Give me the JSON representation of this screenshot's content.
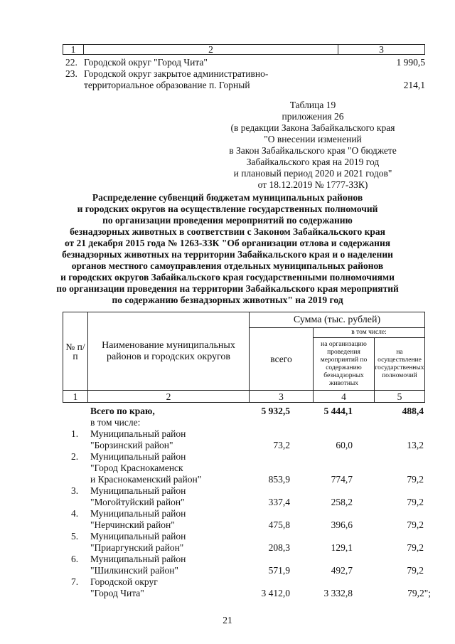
{
  "top_table": {
    "headers": [
      "1",
      "2",
      "3"
    ],
    "rows": [
      {
        "num": "22.",
        "name_lines": [
          "Городской округ \"Город Чита\""
        ],
        "value": "1 990,5"
      },
      {
        "num": "23.",
        "name_lines": [
          "Городской округ закрытое административно-",
          "территориальное образование п. Горный"
        ],
        "value": "214,1"
      }
    ]
  },
  "annex": [
    "Таблица 19",
    "приложения 26",
    "(в редакции Закона Забайкальского края",
    "\"О внесении изменений",
    "в Закон Забайкальского края \"О бюджете",
    "Забайкальского края на 2019 год",
    "и плановый период 2020 и 2021 годов\"",
    "от 18.12.2019  № 1777-ЗЗК)"
  ],
  "title": [
    "Распределение субвенций бюджетам муниципальных районов",
    "и городских округов на осуществление государственных полномочий",
    "по организации проведения мероприятий по содержанию",
    "безнадзорных животных в соответствии с Законом Забайкальского края",
    "от 21 декабря 2015 года № 1263-ЗЗК \"Об организации отлова и содержания",
    "безнадзорных животных на территории Забайкальского края и о наделении",
    "органов местного самоуправления отдельных муниципальных районов",
    "и городских округов Забайкальского края государственными полномочиями",
    "по организации проведения на территории Забайкальского края мероприятий",
    "по содержанию безнадзорных животных\" на 2019 год"
  ],
  "main_table": {
    "header": {
      "num": "№ п/п",
      "name": "Наименование муниципальных районов и городских округов",
      "sum": "Сумма (тыс. рублей)",
      "total": "всего",
      "including": "в том числе:",
      "col4": "на организацию проведения мероприятий по содержанию безнадзорных животных",
      "col5": "на осуществление государственных полномочий"
    },
    "col_numbers": [
      "1",
      "2",
      "3",
      "4",
      "5"
    ],
    "total_row": {
      "name": "Всего по краю,",
      "total": "5 932,5",
      "c4": "5 444,1",
      "c5": "488,4"
    },
    "including_label": "в том числе:",
    "rows": [
      {
        "num": "1.",
        "name_lines": [
          "Муниципальный район",
          "\"Борзинский район\""
        ],
        "total": "73,2",
        "c4": "60,0",
        "c5": "13,2"
      },
      {
        "num": "2.",
        "name_lines": [
          "Муниципальный район",
          "\"Город Краснокаменск",
          "и Краснокаменский район\""
        ],
        "total": "853,9",
        "c4": "774,7",
        "c5": "79,2"
      },
      {
        "num": "3.",
        "name_lines": [
          "Муниципальный район",
          "\"Могойтуйский район\""
        ],
        "total": "337,4",
        "c4": "258,2",
        "c5": "79,2"
      },
      {
        "num": "4.",
        "name_lines": [
          "Муниципальный район",
          "\"Нерчинский район\""
        ],
        "total": "475,8",
        "c4": "396,6",
        "c5": "79,2"
      },
      {
        "num": "5.",
        "name_lines": [
          "Муниципальный район",
          "\"Приаргунский район\""
        ],
        "total": "208,3",
        "c4": "129,1",
        "c5": "79,2"
      },
      {
        "num": "6.",
        "name_lines": [
          "Муниципальный район",
          "\"Шилкинский район\""
        ],
        "total": "571,9",
        "c4": "492,7",
        "c5": "79,2"
      },
      {
        "num": "7.",
        "name_lines": [
          "Городской округ",
          "\"Город Чита\""
        ],
        "total": "3 412,0",
        "c4": "3 332,8",
        "c5": "79,2\";"
      }
    ]
  },
  "page_number": "21"
}
